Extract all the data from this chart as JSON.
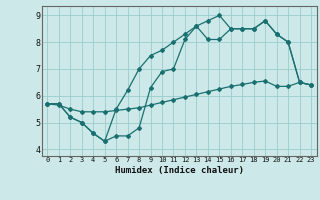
{
  "xlabel": "Humidex (Indice chaleur)",
  "bg_color": "#cce8e8",
  "grid_color": "#99cccc",
  "line_color": "#1a7070",
  "xlim": [
    -0.5,
    23.5
  ],
  "ylim": [
    3.75,
    9.35
  ],
  "xticks": [
    0,
    1,
    2,
    3,
    4,
    5,
    6,
    7,
    8,
    9,
    10,
    11,
    12,
    13,
    14,
    15,
    16,
    17,
    18,
    19,
    20,
    21,
    22,
    23
  ],
  "yticks": [
    4,
    5,
    6,
    7,
    8,
    9
  ],
  "line1_x": [
    0,
    1,
    2,
    3,
    4,
    5,
    6,
    7,
    8,
    9,
    10,
    11,
    12,
    13,
    14,
    15,
    16,
    17,
    18,
    19,
    20,
    21,
    22,
    23
  ],
  "line1_y": [
    5.7,
    5.7,
    5.2,
    5.0,
    4.6,
    4.3,
    4.5,
    4.5,
    4.8,
    6.3,
    6.9,
    7.0,
    8.1,
    8.6,
    8.1,
    8.1,
    8.5,
    8.5,
    8.5,
    8.8,
    8.3,
    8.0,
    6.5,
    6.4
  ],
  "line2_x": [
    0,
    1,
    2,
    3,
    4,
    5,
    6,
    7,
    8,
    9,
    10,
    11,
    12,
    13,
    14,
    15,
    16,
    17,
    18,
    19,
    20,
    21,
    22,
    23
  ],
  "line2_y": [
    5.7,
    5.7,
    5.2,
    5.0,
    4.6,
    4.3,
    5.5,
    6.2,
    7.0,
    7.5,
    7.7,
    8.0,
    8.3,
    8.6,
    8.8,
    9.0,
    8.5,
    8.5,
    8.5,
    8.8,
    8.3,
    8.0,
    6.5,
    6.4
  ],
  "line3_x": [
    0,
    1,
    2,
    3,
    4,
    5,
    6,
    7,
    8,
    9,
    10,
    11,
    12,
    13,
    14,
    15,
    16,
    17,
    18,
    19,
    20,
    21,
    22,
    23
  ],
  "line3_y": [
    5.7,
    5.65,
    5.5,
    5.4,
    5.4,
    5.4,
    5.45,
    5.5,
    5.55,
    5.65,
    5.75,
    5.85,
    5.95,
    6.05,
    6.15,
    6.25,
    6.35,
    6.42,
    6.5,
    6.55,
    6.35,
    6.35,
    6.5,
    6.4
  ]
}
